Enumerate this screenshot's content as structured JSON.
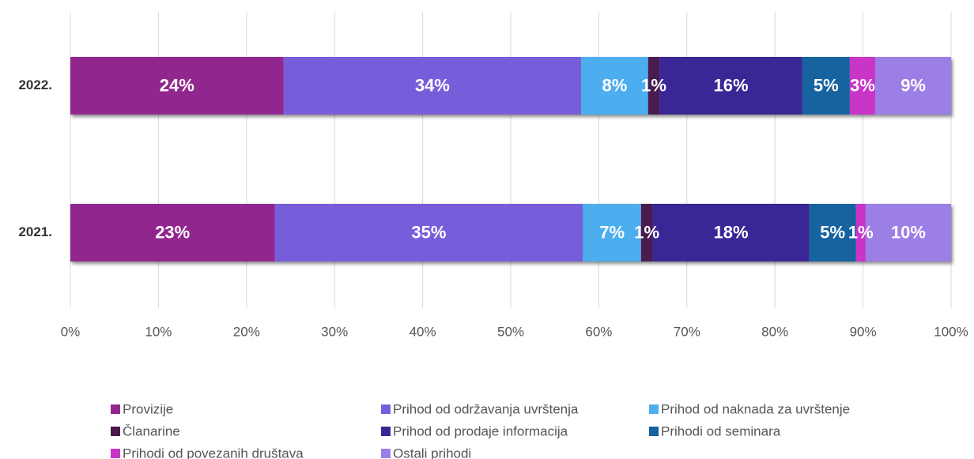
{
  "chart_data": {
    "type": "stacked-bar-horizontal",
    "categories": [
      "2022.",
      "2021."
    ],
    "xlim": [
      0,
      100
    ],
    "xticks": [
      {
        "value": 0,
        "label": "0%"
      },
      {
        "value": 10,
        "label": "10%"
      },
      {
        "value": 20,
        "label": "20%"
      },
      {
        "value": 30,
        "label": "30%"
      },
      {
        "value": 40,
        "label": "40%"
      },
      {
        "value": 50,
        "label": "50%"
      },
      {
        "value": 60,
        "label": "60%"
      },
      {
        "value": 70,
        "label": "70%"
      },
      {
        "value": 80,
        "label": "80%"
      },
      {
        "value": 90,
        "label": "90%"
      },
      {
        "value": 100,
        "label": "100%"
      }
    ],
    "grid": true,
    "legend": "bottom",
    "series": [
      {
        "name": "Provizije",
        "color": "#92278f",
        "values": [
          24.2,
          23.2
        ],
        "value_labels": [
          "24%",
          "23%"
        ]
      },
      {
        "name": "Prihod od održavanja uvrštenja",
        "color": "#785ddb",
        "values": [
          33.8,
          35.0
        ],
        "value_labels": [
          "34%",
          "35%"
        ]
      },
      {
        "name": "Prihod od naknada za uvrštenje",
        "color": "#4eaeef",
        "values": [
          7.6,
          6.6
        ],
        "value_labels": [
          "8%",
          "7%"
        ]
      },
      {
        "name": "Članarine",
        "color": "#4a1a4f",
        "values": [
          1.3,
          1.3
        ],
        "value_labels": [
          "1%",
          "1%"
        ]
      },
      {
        "name": "Prihod od prodaje informacija",
        "color": "#3a2596",
        "values": [
          16.2,
          17.8
        ],
        "value_labels": [
          "16%",
          "18%"
        ]
      },
      {
        "name": "Prihodi od seminara",
        "color": "#15639f",
        "values": [
          5.4,
          5.3
        ],
        "value_labels": [
          "5%",
          "5%"
        ]
      },
      {
        "name": "Prihodi od povezanih društava",
        "color": "#c935c8",
        "values": [
          2.9,
          1.1
        ],
        "value_labels": [
          "3%",
          "1%"
        ]
      },
      {
        "name": "Ostali prihodi",
        "color": "#9b7fe6",
        "values": [
          8.6,
          9.7
        ],
        "value_labels": [
          "9%",
          "10%"
        ]
      }
    ]
  }
}
